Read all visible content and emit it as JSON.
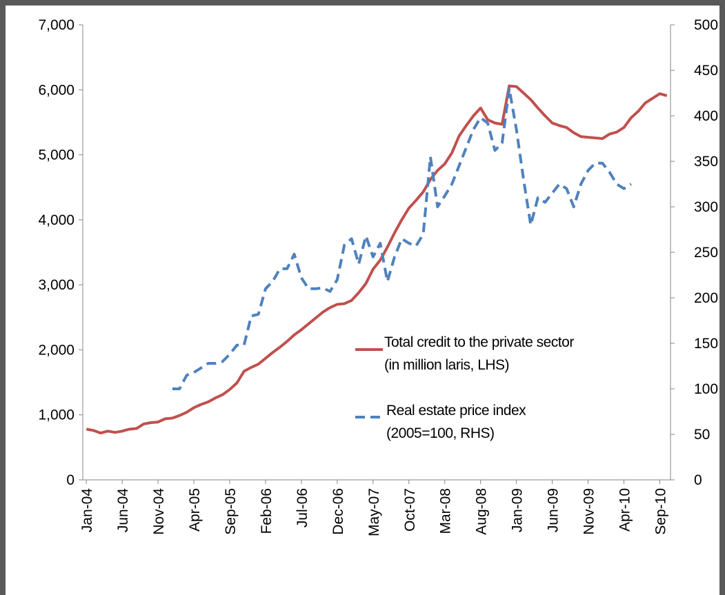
{
  "chart_data": {
    "type": "line",
    "categories": [
      "Jan-04",
      null,
      null,
      null,
      null,
      "Jun-04",
      null,
      null,
      null,
      null,
      "Nov-04",
      null,
      null,
      null,
      null,
      "Apr-05",
      null,
      null,
      null,
      null,
      "Sep-05",
      null,
      null,
      null,
      null,
      "Feb-06",
      null,
      null,
      null,
      null,
      "Jul-06",
      null,
      null,
      null,
      null,
      "Dec-06",
      null,
      null,
      null,
      null,
      "May-07",
      null,
      null,
      null,
      null,
      "Oct-07",
      null,
      null,
      null,
      null,
      "Mar-08",
      null,
      null,
      null,
      null,
      "Aug-08",
      null,
      null,
      null,
      null,
      "Jan-09",
      null,
      null,
      null,
      null,
      "Jun-09",
      null,
      null,
      null,
      null,
      "Nov-09",
      null,
      null,
      null,
      null,
      "Apr-10",
      null,
      null,
      null,
      null,
      "Sep-10",
      null
    ],
    "series": [
      {
        "name": "Total credit to the private sector\n(in million laris, LHS)",
        "color": "#c0504d",
        "values": [
          780,
          760,
          720,
          750,
          730,
          750,
          780,
          790,
          860,
          880,
          890,
          940,
          950,
          990,
          1040,
          1110,
          1160,
          1200,
          1260,
          1310,
          1390,
          1490,
          1670,
          1730,
          1780,
          1870,
          1960,
          2040,
          2130,
          2230,
          2310,
          2400,
          2490,
          2580,
          2650,
          2700,
          2710,
          2760,
          2880,
          3020,
          3240,
          3380,
          3580,
          3800,
          4000,
          4180,
          4300,
          4430,
          4620,
          4760,
          4860,
          5030,
          5290,
          5450,
          5600,
          5720,
          5540,
          5490,
          5470,
          6060,
          6050,
          5950,
          5850,
          5720,
          5600,
          5490,
          5450,
          5420,
          5340,
          5280,
          5270,
          5260,
          5250,
          5320,
          5350,
          5420,
          5570,
          5670,
          5800,
          5870,
          5940,
          5910
        ]
      },
      {
        "name": "Real estate price index\n(2005=100, RHS)",
        "color": "#4f81bd",
        "dashed": true,
        "axis": "y2",
        "values": [
          null,
          null,
          null,
          null,
          null,
          null,
          null,
          null,
          null,
          null,
          null,
          null,
          100,
          100,
          115,
          118,
          123,
          128,
          128,
          130,
          138,
          148,
          148,
          180,
          182,
          210,
          218,
          232,
          232,
          248,
          222,
          210,
          210,
          211,
          207,
          220,
          258,
          265,
          237,
          268,
          245,
          260,
          218,
          245,
          265,
          260,
          257,
          270,
          355,
          300,
          312,
          325,
          345,
          365,
          385,
          398,
          392,
          362,
          370,
          430,
          385,
          330,
          280,
          310,
          305,
          315,
          325,
          320,
          300,
          325,
          340,
          348,
          348,
          338,
          325,
          320,
          325,
          null,
          null,
          null,
          null,
          null
        ]
      }
    ],
    "ylim": [
      0,
      7000
    ],
    "yticks": [
      0,
      {
        "value": 1000,
        "label": "1,000"
      },
      {
        "value": 2000,
        "label": "2,000"
      },
      {
        "value": 3000,
        "label": "3,000"
      },
      {
        "value": 4000,
        "label": "4,000"
      },
      {
        "value": 5000,
        "label": "5,000"
      },
      {
        "value": 6000,
        "label": "6,000"
      },
      {
        "value": 7000,
        "label": "7,000"
      }
    ],
    "y2lim": [
      0,
      500
    ],
    "y2ticks": [
      0,
      50,
      100,
      150,
      200,
      250,
      300,
      350,
      400,
      450,
      500
    ],
    "grid": false
  }
}
